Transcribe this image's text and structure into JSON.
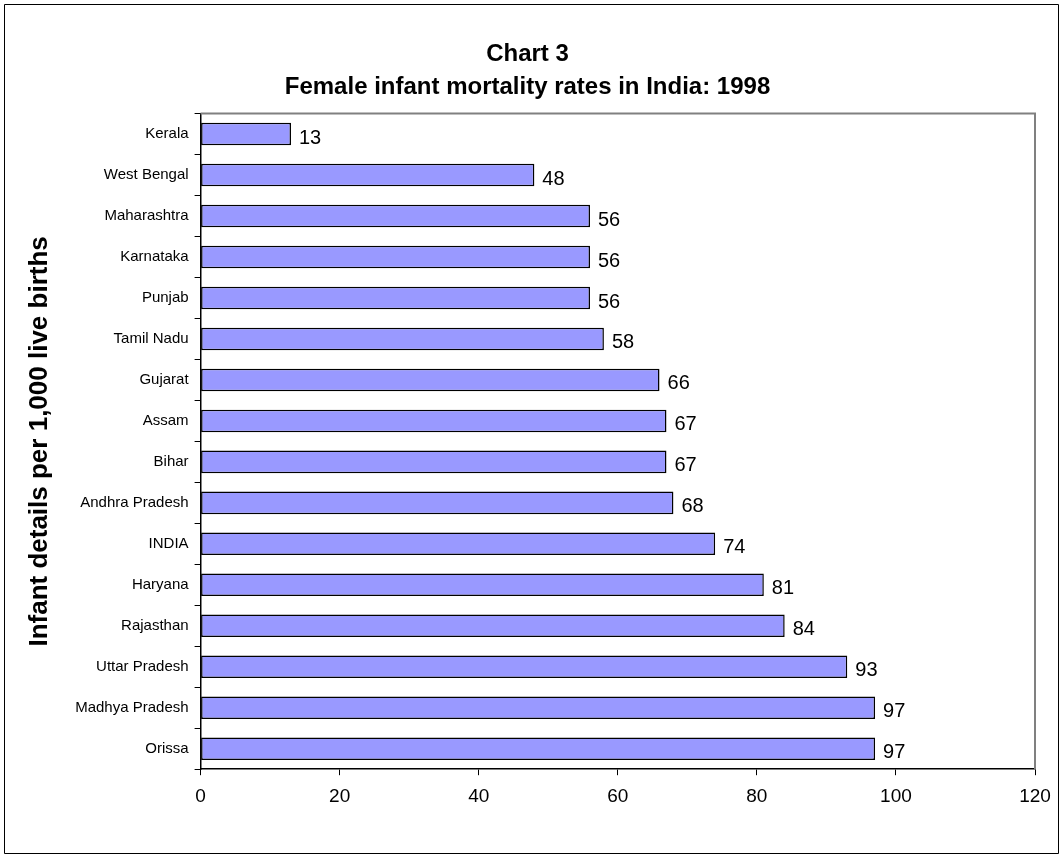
{
  "chart_data": {
    "type": "bar",
    "orientation": "horizontal",
    "title": "Chart 3",
    "subtitle": "Female infant mortality rates in India: 1998",
    "ylabel": "Infant details per 1,000 live births",
    "categories": [
      "Kerala",
      "West Bengal",
      "Maharashtra",
      "Karnataka",
      "Punjab",
      "Tamil Nadu",
      "Gujarat",
      "Assam",
      "Bihar",
      "Andhra Pradesh",
      "INDIA",
      "Haryana",
      "Rajasthan",
      "Uttar Pradesh",
      "Madhya Pradesh",
      "Orissa"
    ],
    "values": [
      13,
      48,
      56,
      56,
      56,
      58,
      66,
      67,
      67,
      68,
      74,
      81,
      84,
      93,
      97,
      97
    ],
    "color": "#9999ff",
    "xlim": [
      0,
      120
    ],
    "xticks": [
      0,
      20,
      40,
      60,
      80,
      100,
      120
    ],
    "data_labels": true,
    "grid": false,
    "legend": false
  }
}
